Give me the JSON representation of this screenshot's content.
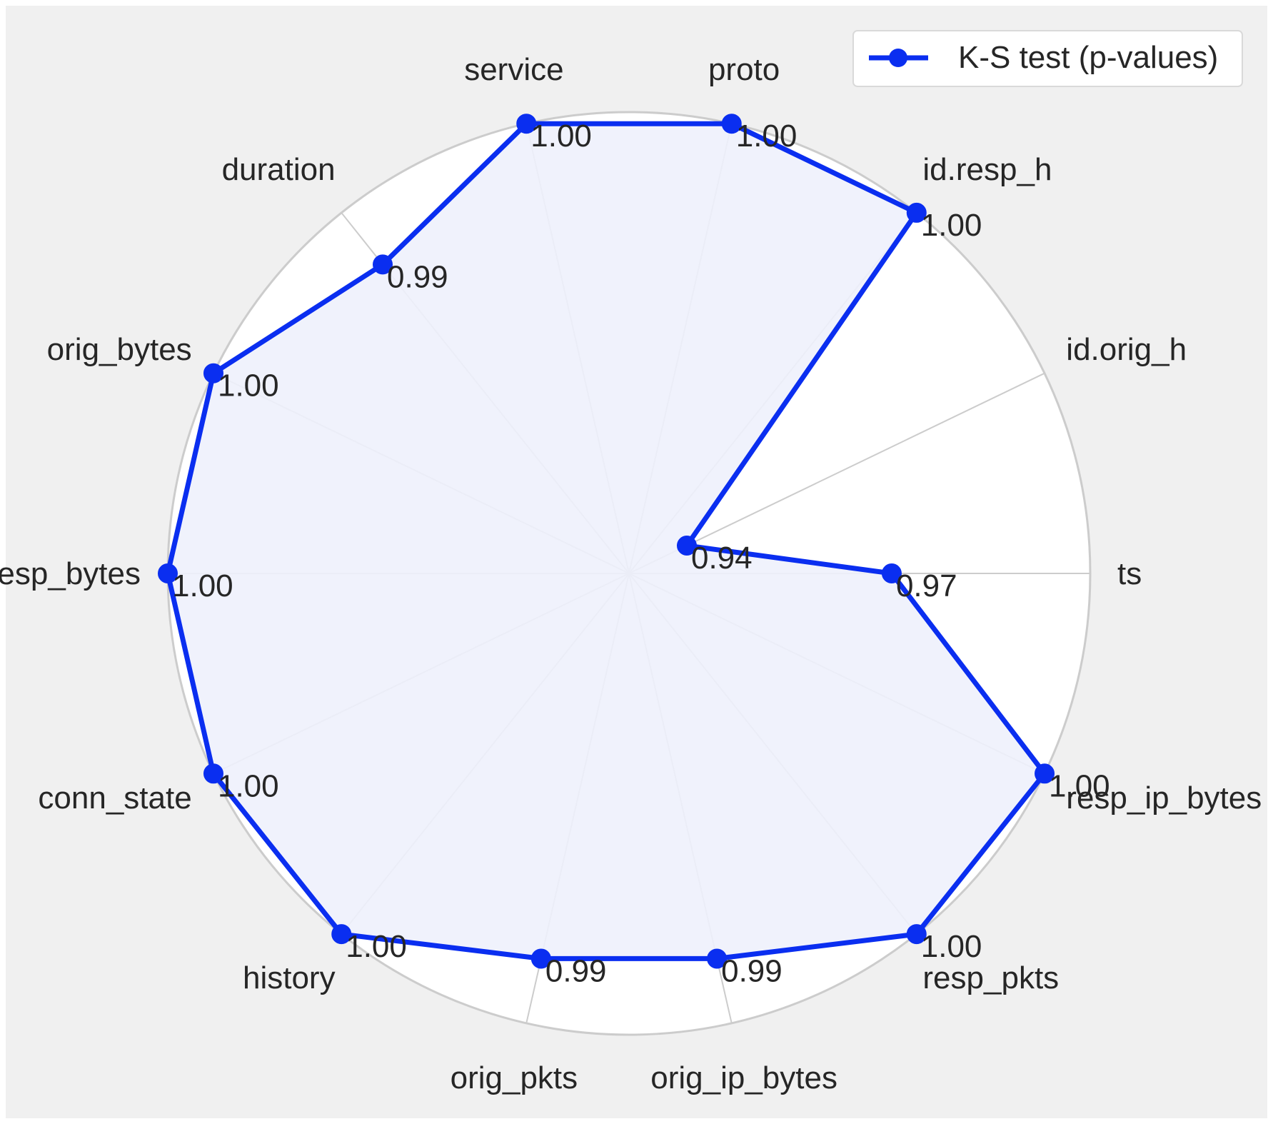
{
  "chart_data": {
    "type": "radar",
    "categories": [
      "ts",
      "id.orig_h",
      "id.resp_h",
      "proto",
      "service",
      "duration",
      "orig_bytes",
      "resp_bytes",
      "conn_state",
      "history",
      "orig_pkts",
      "orig_ip_bytes",
      "resp_pkts",
      "resp_ip_bytes"
    ],
    "series": [
      {
        "name": "K-S test (p-values)",
        "values": [
          0.97,
          0.94,
          1.0,
          1.0,
          1.0,
          0.99,
          1.0,
          1.0,
          1.0,
          1.0,
          0.99,
          0.99,
          1.0,
          1.0
        ],
        "value_labels": [
          "0.97",
          "0.94",
          "1.00",
          "1.00",
          "1.00",
          "0.99",
          "1.00",
          "1.00",
          "1.00",
          "1.00",
          "0.99",
          "0.99",
          "1.00",
          "1.00"
        ]
      }
    ],
    "rlim": [
      0.9303,
      1.0
    ],
    "grid": true,
    "legend_position": "top-right",
    "colors": {
      "series": "#0a2ef0",
      "fill": "#eef1fc",
      "panel": "#f0f0f0",
      "plot_background": "#ffffff",
      "grid": "#cccccc"
    }
  }
}
